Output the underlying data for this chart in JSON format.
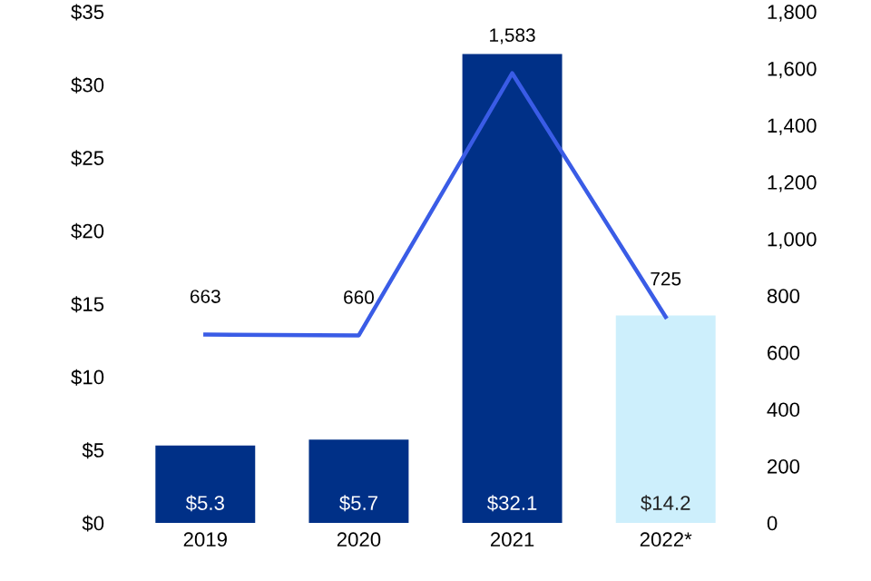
{
  "chart_data": {
    "type": "bar",
    "categories": [
      "2019",
      "2020",
      "2021",
      "2022*"
    ],
    "series": [
      {
        "colors": [
          "#003087",
          "#003087",
          "#003087",
          "#cdeffc"
        ],
        "values": [
          5.3,
          5.7,
          32.1,
          14.2
        ],
        "value_labels": [
          "$5.3",
          "$5.7",
          "$32.1",
          "$14.2"
        ]
      },
      {
        "type": "line",
        "axis": "y2",
        "color": "#3a5ce6",
        "values": [
          663,
          660,
          1583,
          725
        ],
        "value_labels": [
          "663",
          "660",
          "1,583",
          "725"
        ]
      }
    ],
    "ylim": [
      0,
      35
    ],
    "yticks": [
      {
        "value": 0,
        "label": "$0"
      },
      {
        "value": 5,
        "label": "$5"
      },
      {
        "value": 10,
        "label": "$10"
      },
      {
        "value": 15,
        "label": "$15"
      },
      {
        "value": 20,
        "label": "$20"
      },
      {
        "value": 25,
        "label": "$25"
      },
      {
        "value": 30,
        "label": "$30"
      },
      {
        "value": 35,
        "label": "$35"
      }
    ],
    "y2lim": [
      0,
      1800
    ],
    "y2ticks": [
      0,
      200,
      400,
      600,
      800,
      {
        "value": 1000,
        "label": "1,000"
      },
      {
        "value": 1200,
        "label": "1,200"
      },
      {
        "value": 1400,
        "label": "1,400"
      },
      {
        "value": 1600,
        "label": "1,600"
      },
      {
        "value": 1800,
        "label": "1,800"
      }
    ],
    "grid": false,
    "legend": false,
    "marker": "none",
    "line_style": "solid"
  }
}
